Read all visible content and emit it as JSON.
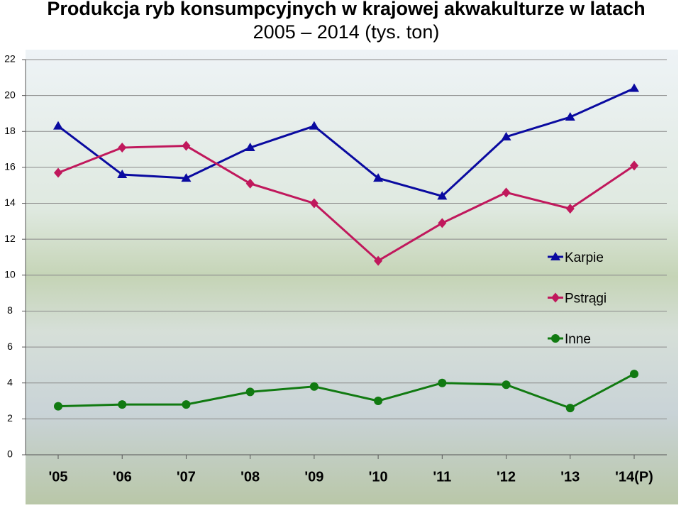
{
  "chart_data": {
    "type": "line",
    "title": [
      "Produkcja ryb konsumpcyjnych w krajowej akwakulturze w latach",
      "2005 – 2014 (tys. ton)"
    ],
    "categories": [
      "'05",
      "'06",
      "'07",
      "'08",
      "'09",
      "'10",
      "'11",
      "'12",
      "'13",
      "'14(P)"
    ],
    "series": [
      {
        "name": "Karpie",
        "color": "#0a0aa0",
        "marker": "triangle",
        "values": [
          18.3,
          15.6,
          15.4,
          17.1,
          18.3,
          15.4,
          14.4,
          17.7,
          18.8,
          20.4
        ]
      },
      {
        "name": "Pstrągi",
        "color": "#c0185c",
        "marker": "diamond",
        "values": [
          15.7,
          17.1,
          17.2,
          15.1,
          14.0,
          10.8,
          12.9,
          14.6,
          13.7,
          16.1
        ]
      },
      {
        "name": "Inne",
        "color": "#117a11",
        "marker": "circle",
        "values": [
          2.7,
          2.8,
          2.8,
          3.5,
          3.8,
          3.0,
          4.0,
          3.9,
          2.6,
          4.5
        ]
      }
    ],
    "ylim": [
      0,
      22
    ],
    "yticks": [
      0,
      2,
      4,
      6,
      8,
      10,
      12,
      14,
      16,
      18,
      20,
      22
    ],
    "grid": true,
    "legend": "right"
  }
}
